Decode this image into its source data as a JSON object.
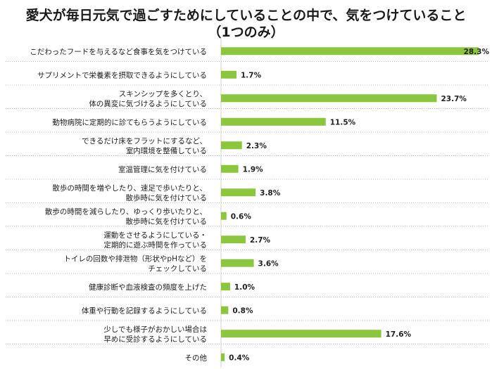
{
  "chart_data": {
    "type": "bar",
    "orientation": "horizontal",
    "title": "愛犬が毎日元気で過ごすためにしていることの中で、気をつけていること",
    "subtitle": "（1つのみ）",
    "bar_color": "#8cc63f",
    "categories": [
      [
        "こだわったフードを与えるなど食事を気をつけている"
      ],
      [
        "サプリメントで栄養素を摂取できるようにしている"
      ],
      [
        "スキンシップを多くとり、",
        "体の異変に気づけるようにしている"
      ],
      [
        "動物病院に定期的に診てもらうようにしている"
      ],
      [
        "できるだけ床をフラットにするなど、",
        "室内環境を整備している"
      ],
      [
        "室温管理に気を付けている"
      ],
      [
        "散歩の時間を増やしたり、速足で歩いたりと、",
        "散歩時に気を付けている"
      ],
      [
        "散歩の時間を減らしたり、ゆっくり歩いたりと、",
        "散歩時に気を付けている"
      ],
      [
        "運動をさせるようにしている・",
        "定期的に遊ぶ時間を作っている"
      ],
      [
        "トイレの回数や排泄物（形状やpHなど）を",
        "チェックしている"
      ],
      [
        "健康診断や血液検査の頻度を上げた"
      ],
      [
        "体重や行動を記録するようにしている"
      ],
      [
        "少しでも様子がおかしい場合は",
        "早めに受診するようにしている"
      ],
      [
        "その他"
      ]
    ],
    "values": [
      28.3,
      1.7,
      23.7,
      11.5,
      2.3,
      1.9,
      3.8,
      0.6,
      2.7,
      3.6,
      1.0,
      0.8,
      17.6,
      0.4
    ],
    "value_labels": [
      "28.3%",
      "1.7%",
      "23.7%",
      "11.5%",
      "2.3%",
      "1.9%",
      "3.8%",
      "0.6%",
      "2.7%",
      "3.6%",
      "1.0%",
      "0.8%",
      "17.6%",
      "0.4%"
    ],
    "xlim": [
      0,
      28.3
    ],
    "gridlines": "horizontal dotted separators between rows"
  }
}
